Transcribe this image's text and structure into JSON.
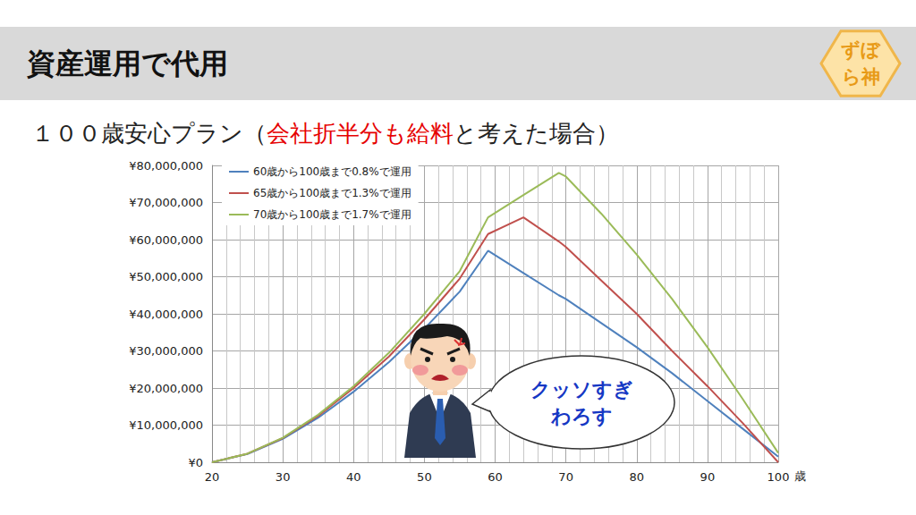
{
  "title": "資産運用で代用",
  "logo": [
    "ずぼ",
    "ら神"
  ],
  "subtitle": [
    {
      "text": "１００歳安心プラン（",
      "color": "#222222"
    },
    {
      "text": "会社折半分も給料",
      "color": "#e60000"
    },
    {
      "text": "と考えた場合）",
      "color": "#222222"
    }
  ],
  "speech": [
    "クッソすぎ",
    "わろす"
  ],
  "chart_data": {
    "type": "line",
    "x_label": "歳",
    "x": [
      20,
      25,
      30,
      35,
      40,
      45,
      50,
      55,
      59,
      64,
      69,
      70,
      75,
      80,
      85,
      90,
      95,
      100
    ],
    "series": [
      {
        "name": "60歳から100歳まで0.8%で運用",
        "color": "#4f81bd",
        "values": [
          0,
          2200000,
          6300000,
          12000000,
          19000000,
          27000000,
          36000000,
          46000000,
          57000000,
          51000000,
          45000000,
          44000000,
          37500000,
          31000000,
          24000000,
          16500000,
          9000000,
          1500000
        ]
      },
      {
        "name": "65歳から100歳まで1.3%で運用",
        "color": "#c0504d",
        "values": [
          0,
          2300000,
          6500000,
          12500000,
          20000000,
          28500000,
          38500000,
          49500000,
          61500000,
          66000000,
          59500000,
          58000000,
          49000000,
          40000000,
          30000000,
          20500000,
          10500000,
          0
        ]
      },
      {
        "name": "70歳から100歳まで1.7%で運用",
        "color": "#9bbb59",
        "values": [
          0,
          2300000,
          6600000,
          12800000,
          20500000,
          29500000,
          40000000,
          51500000,
          66000000,
          72000000,
          78000000,
          77000000,
          67000000,
          56000000,
          44000000,
          31000000,
          17000000,
          2500000
        ]
      }
    ],
    "xlim": [
      20,
      100
    ],
    "xticks": [
      20,
      30,
      40,
      50,
      60,
      70,
      80,
      90,
      100
    ],
    "ylim": [
      0,
      80000000
    ],
    "yticks": [
      {
        "value": 0,
        "label": "¥0"
      },
      {
        "value": 10000000,
        "label": "¥10,000,000"
      },
      {
        "value": 20000000,
        "label": "¥20,000,000"
      },
      {
        "value": 30000000,
        "label": "¥30,000,000"
      },
      {
        "value": 40000000,
        "label": "¥40,000,000"
      },
      {
        "value": 50000000,
        "label": "¥50,000,000"
      },
      {
        "value": 60000000,
        "label": "¥60,000,000"
      },
      {
        "value": 70000000,
        "label": "¥70,000,000"
      },
      {
        "value": 80000000,
        "label": "¥80,000,000"
      }
    ],
    "grid": true,
    "legend": "upper left"
  }
}
